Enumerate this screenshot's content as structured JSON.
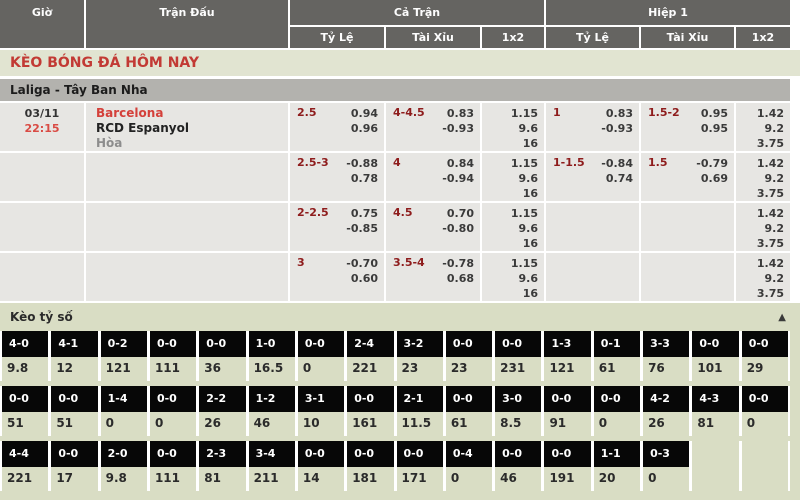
{
  "header": {
    "col_time": "Giờ",
    "col_match": "Trận Đấu",
    "group_fulltime": "Cả Trận",
    "group_firsthalf": "Hiệp 1",
    "sub_handicap": "Tỷ Lệ",
    "sub_overunder": "Tài Xỉu",
    "sub_1x2": "1x2"
  },
  "page_title": "KÈO BÓNG ĐÁ HÔM NAY",
  "league_title": "Laliga - Tây Ban Nha",
  "match": {
    "date": "03/11",
    "time": "22:15",
    "home": "Barcelona",
    "away": "RCD Espanyol",
    "draw": "Hòa"
  },
  "odds_rows": [
    {
      "ft_hdp": "2.5",
      "ft_hdp_odds": [
        "0.94",
        "0.96"
      ],
      "ft_ou": "4-4.5",
      "ft_ou_odds": [
        "0.83",
        "-0.93"
      ],
      "ft_1x2": [
        "1.15",
        "9.6",
        "16"
      ],
      "h1_hdp": "1",
      "h1_hdp_odds": [
        "0.83",
        "-0.93"
      ],
      "h1_ou": "1.5-2",
      "h1_ou_odds": [
        "0.95",
        "0.95"
      ],
      "h1_1x2": [
        "1.42",
        "9.2",
        "3.75"
      ]
    },
    {
      "ft_hdp": "2.5-3",
      "ft_hdp_odds": [
        "-0.88",
        "0.78"
      ],
      "ft_ou": "4",
      "ft_ou_odds": [
        "0.84",
        "-0.94"
      ],
      "ft_1x2": [
        "1.15",
        "9.6",
        "16"
      ],
      "h1_hdp": "1-1.5",
      "h1_hdp_odds": [
        "-0.84",
        "0.74"
      ],
      "h1_ou": "1.5",
      "h1_ou_odds": [
        "-0.79",
        "0.69"
      ],
      "h1_1x2": [
        "1.42",
        "9.2",
        "3.75"
      ]
    },
    {
      "ft_hdp": "2-2.5",
      "ft_hdp_odds": [
        "0.75",
        "-0.85"
      ],
      "ft_ou": "4.5",
      "ft_ou_odds": [
        "0.70",
        "-0.80"
      ],
      "ft_1x2": [
        "1.15",
        "9.6",
        "16"
      ],
      "h1_hdp": "",
      "h1_hdp_odds": [
        "",
        ""
      ],
      "h1_ou": "",
      "h1_ou_odds": [
        "",
        ""
      ],
      "h1_1x2": [
        "1.42",
        "9.2",
        "3.75"
      ]
    },
    {
      "ft_hdp": "3",
      "ft_hdp_odds": [
        "-0.70",
        "0.60"
      ],
      "ft_ou": "3.5-4",
      "ft_ou_odds": [
        "-0.78",
        "0.68"
      ],
      "ft_1x2": [
        "1.15",
        "9.6",
        "16"
      ],
      "h1_hdp": "",
      "h1_hdp_odds": [
        "",
        ""
      ],
      "h1_ou": "",
      "h1_ou_odds": [
        "",
        ""
      ],
      "h1_1x2": [
        "1.42",
        "9.2",
        "3.75"
      ]
    }
  ],
  "score_section": {
    "title": "Kèo tỷ số",
    "collapse_icon": "▲",
    "rows": [
      [
        {
          "score": "4-0",
          "odds": "9.8"
        },
        {
          "score": "4-1",
          "odds": "12"
        },
        {
          "score": "0-2",
          "odds": "121"
        },
        {
          "score": "0-0",
          "odds": "111"
        },
        {
          "score": "0-0",
          "odds": "36"
        },
        {
          "score": "1-0",
          "odds": "16.5"
        },
        {
          "score": "0-0",
          "odds": "0"
        },
        {
          "score": "2-4",
          "odds": "221"
        },
        {
          "score": "3-2",
          "odds": "23"
        },
        {
          "score": "0-0",
          "odds": "23"
        },
        {
          "score": "0-0",
          "odds": "231"
        },
        {
          "score": "1-3",
          "odds": "121"
        },
        {
          "score": "0-1",
          "odds": "61"
        },
        {
          "score": "3-3",
          "odds": "76"
        },
        {
          "score": "0-0",
          "odds": "101"
        },
        {
          "score": "0-0",
          "odds": "29"
        }
      ],
      [
        {
          "score": "0-0",
          "odds": "51"
        },
        {
          "score": "0-0",
          "odds": "51"
        },
        {
          "score": "1-4",
          "odds": "0"
        },
        {
          "score": "0-0",
          "odds": "0"
        },
        {
          "score": "2-2",
          "odds": "26"
        },
        {
          "score": "1-2",
          "odds": "46"
        },
        {
          "score": "3-1",
          "odds": "10"
        },
        {
          "score": "0-0",
          "odds": "161"
        },
        {
          "score": "2-1",
          "odds": "11.5"
        },
        {
          "score": "0-0",
          "odds": "61"
        },
        {
          "score": "3-0",
          "odds": "8.5"
        },
        {
          "score": "0-0",
          "odds": "91"
        },
        {
          "score": "0-0",
          "odds": "0"
        },
        {
          "score": "4-2",
          "odds": "26"
        },
        {
          "score": "4-3",
          "odds": "81"
        },
        {
          "score": "0-0",
          "odds": "0"
        }
      ],
      [
        {
          "score": "4-4",
          "odds": "221"
        },
        {
          "score": "0-0",
          "odds": "17"
        },
        {
          "score": "2-0",
          "odds": "9.8"
        },
        {
          "score": "0-0",
          "odds": "111"
        },
        {
          "score": "2-3",
          "odds": "81"
        },
        {
          "score": "3-4",
          "odds": "211"
        },
        {
          "score": "0-0",
          "odds": "14"
        },
        {
          "score": "0-0",
          "odds": "181"
        },
        {
          "score": "0-0",
          "odds": "171"
        },
        {
          "score": "0-4",
          "odds": "0"
        },
        {
          "score": "0-0",
          "odds": "46"
        },
        {
          "score": "0-0",
          "odds": "191"
        },
        {
          "score": "1-1",
          "odds": "20"
        },
        {
          "score": "0-3",
          "odds": "0"
        },
        null,
        null
      ]
    ]
  },
  "colors": {
    "header_bg": "#656461",
    "accent_red": "#c23a34",
    "handicap_maroon": "#8e1c1c",
    "row_bg": "#e7e6e3",
    "league_bar_bg": "#b3b2ae",
    "section_green": "#d9ddc4",
    "score_cell_bg": "#070707"
  }
}
